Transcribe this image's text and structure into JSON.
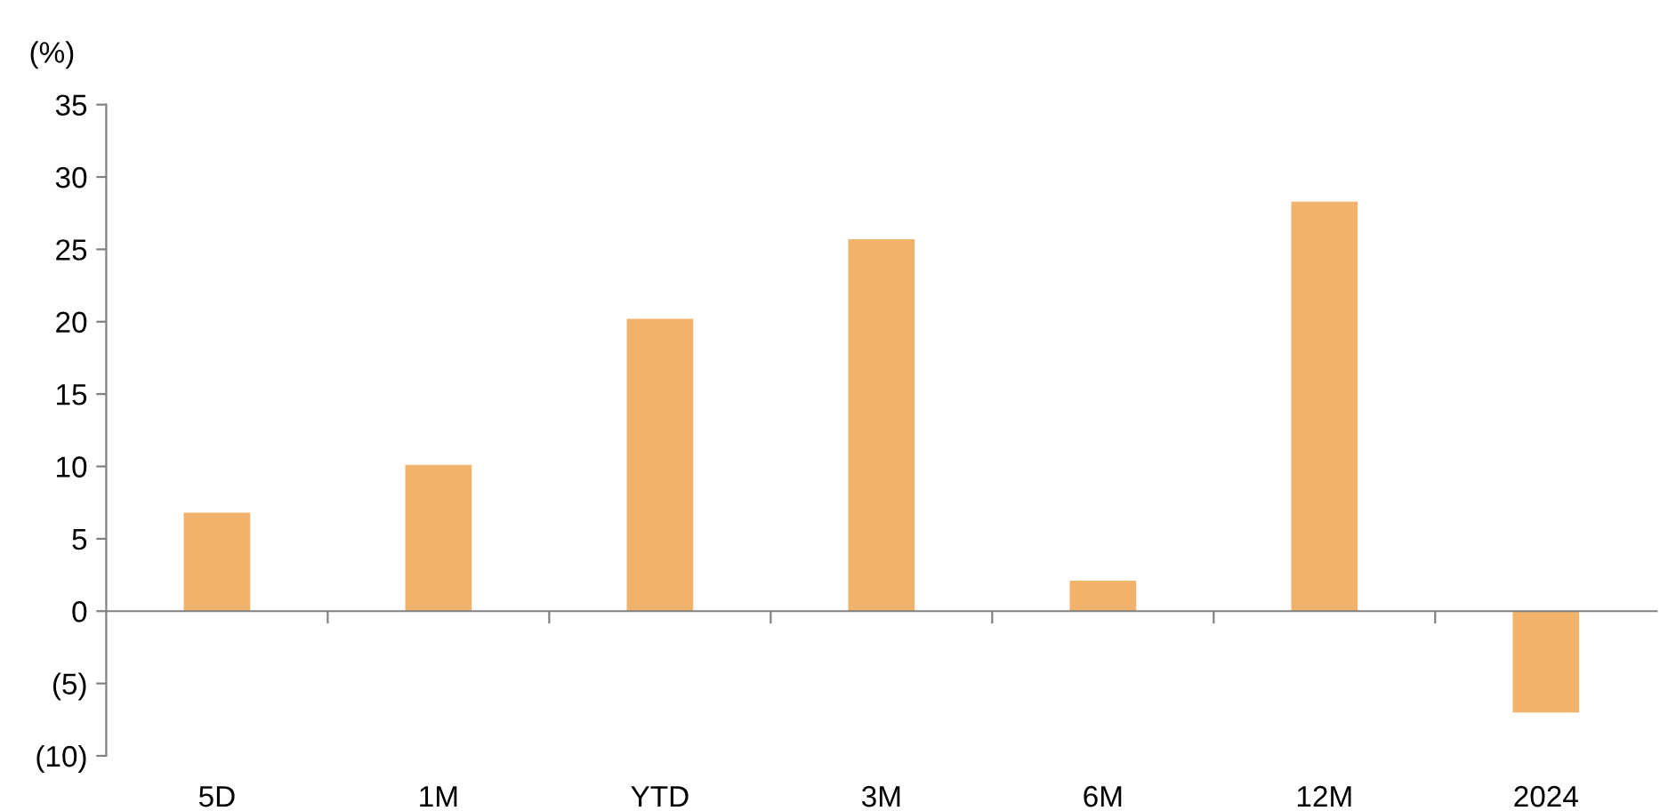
{
  "chart_data": {
    "type": "bar",
    "ylabel": "(%)",
    "categories": [
      "5D",
      "1M",
      "YTD",
      "3M",
      "6M",
      "12M",
      "2024"
    ],
    "values": [
      6.8,
      10.1,
      20.2,
      25.7,
      2.1,
      28.3,
      -7.0
    ],
    "color": "#f1b26c",
    "ylim": [
      -10,
      35
    ],
    "yticks": [
      {
        "value": -10,
        "label": "(10)"
      },
      {
        "value": -5,
        "label": "(5)"
      },
      0,
      5,
      10,
      15,
      20,
      25,
      30,
      35
    ],
    "legend": false
  }
}
